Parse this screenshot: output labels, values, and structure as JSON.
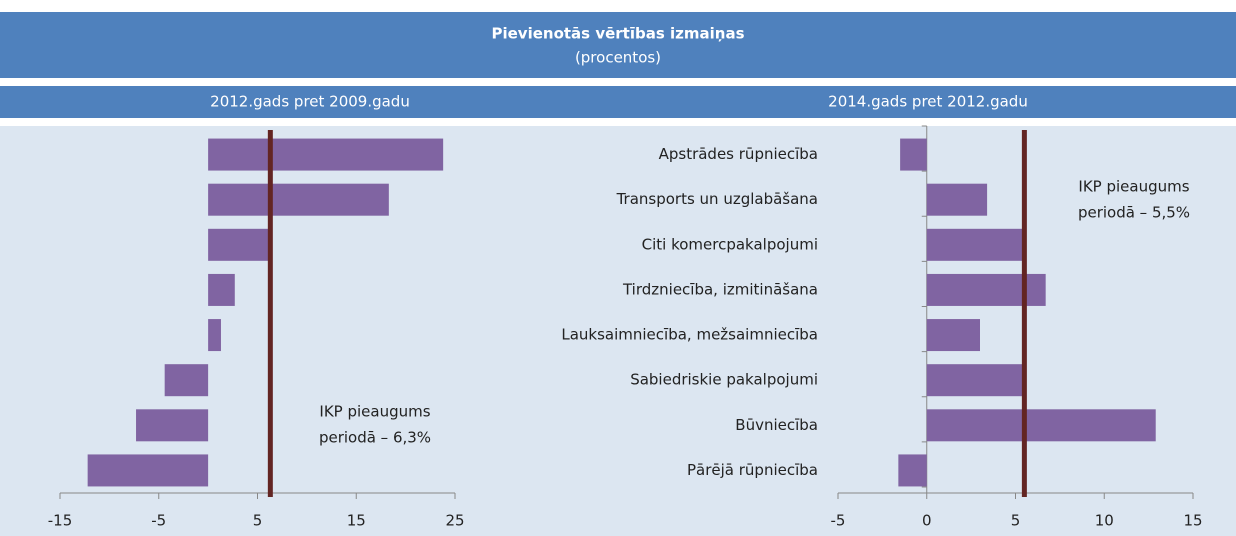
{
  "header": {
    "title": "Pievienotās vērtības izmaiņas",
    "subtitle": "(procentos)"
  },
  "chart_data": [
    {
      "type": "hbar",
      "title": "2012.gads pret 2009.gadu",
      "values": [
        23.8,
        18.3,
        6.5,
        2.7,
        1.3,
        -4.4,
        -7.3,
        -12.2
      ],
      "color": "#8064a2",
      "xlim": [
        -15,
        25
      ],
      "xticks": [
        -15,
        -5,
        5,
        15,
        25
      ],
      "reference": {
        "value": 6.3,
        "color": "#632523"
      },
      "annotation": [
        "IKP pieaugums",
        "periodā – 6,3%"
      ]
    },
    {
      "type": "hbar",
      "title": "2014.gads pret 2012.gadu",
      "categories": [
        "Apstrādes rūpniecība",
        "Transports un uzglabāšana",
        "Citi komercpakalpojumi",
        "Tirdzniecība, izmitināšana",
        "Lauksaimniecība, mežsaimniecība",
        "Sabiedriskie pakalpojumi",
        "Būvniecība",
        "Pārējā rūpniecība"
      ],
      "values": [
        -1.5,
        3.4,
        5.6,
        6.7,
        3.0,
        5.6,
        12.9,
        -1.6
      ],
      "color": "#8064a2",
      "xlim": [
        -5,
        15
      ],
      "xticks": [
        -5,
        0,
        5,
        10,
        15
      ],
      "reference": {
        "value": 5.5,
        "color": "#632523"
      },
      "annotation": [
        "IKP pieaugums",
        "periodā – 5,5%"
      ]
    }
  ]
}
